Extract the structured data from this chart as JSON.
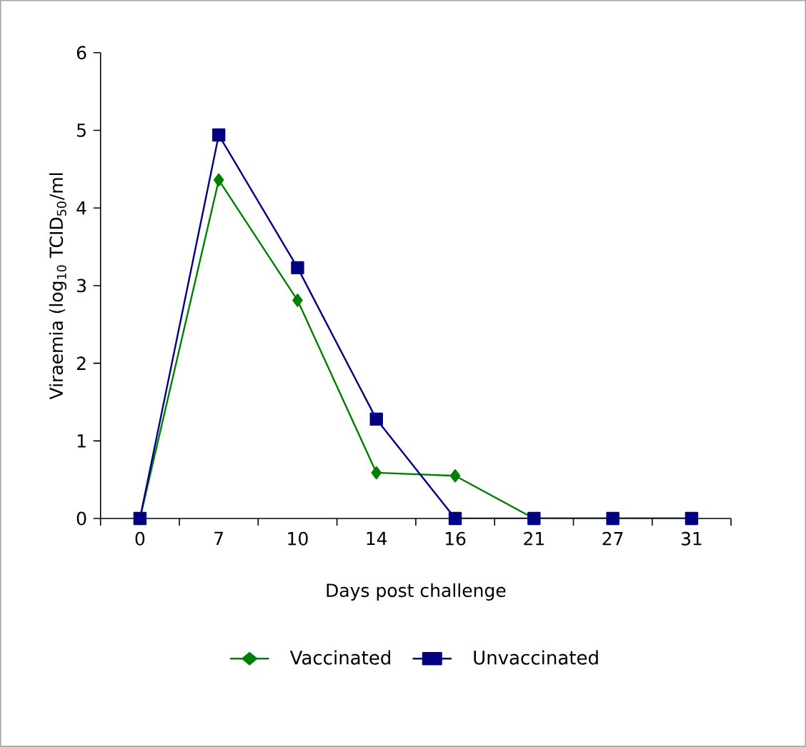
{
  "chart_data": {
    "type": "line",
    "xlabel": "Days post challenge",
    "ylabel": "Viraemia (log$_{10}$ TCID$_{50}$/ml",
    "categories": [
      "0",
      "7",
      "10",
      "14",
      "16",
      "21",
      "27",
      "31"
    ],
    "ylim": [
      0,
      6
    ],
    "yticks": [
      0,
      1,
      2,
      3,
      4,
      5,
      6
    ],
    "legend": "bottom",
    "series": [
      {
        "name": "Vaccinated",
        "color": "#008000",
        "marker": "diamond",
        "values": [
          0,
          4.36,
          2.81,
          0.59,
          0.55,
          0,
          0,
          0
        ]
      },
      {
        "name": "Unvaccinated",
        "color": "#000080",
        "marker": "square",
        "values": [
          0,
          4.94,
          3.23,
          1.28,
          0,
          0,
          0,
          0
        ]
      }
    ]
  }
}
